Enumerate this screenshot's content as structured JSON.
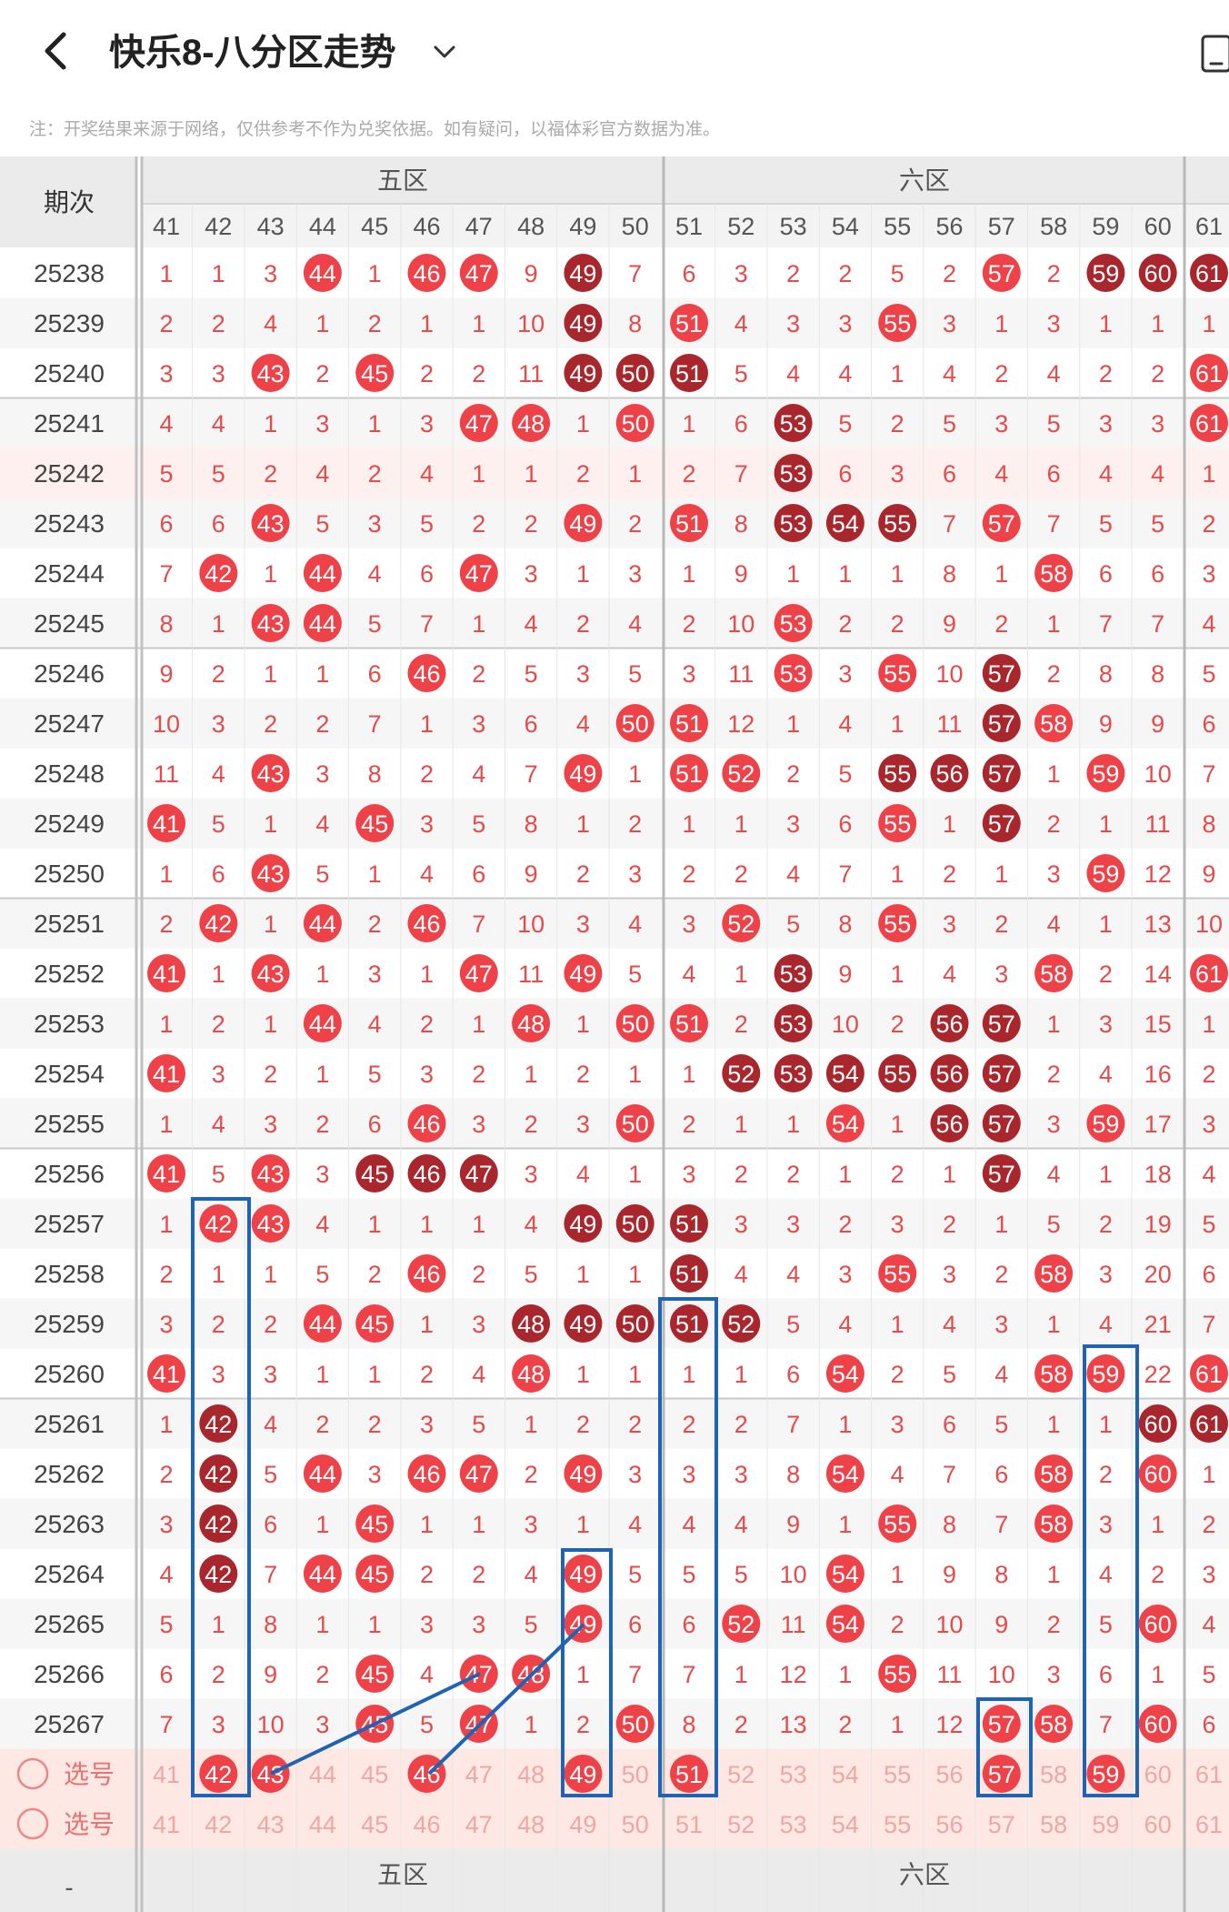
{
  "header": {
    "title": "快乐8-八分区走势",
    "note": "注：开奖结果来源于网络，仅供参考不作为兑奖依据。如有疑问，以福体彩官方数据为准。"
  },
  "table": {
    "period_label": "期次",
    "zones": [
      {
        "label": "五区",
        "numbers": [
          41,
          42,
          43,
          44,
          45,
          46,
          47,
          48,
          49,
          50
        ]
      },
      {
        "label": "六区",
        "numbers": [
          51,
          52,
          53,
          54,
          55,
          56,
          57,
          58,
          59,
          60
        ]
      }
    ],
    "partial_column": 61,
    "select_label": "选号",
    "footer_dash": "-",
    "rows": [
      {
        "period": "25238",
        "cells": [
          1,
          1,
          3,
          44,
          1,
          46,
          47,
          9,
          49,
          7,
          6,
          3,
          2,
          2,
          5,
          2,
          57,
          2,
          59,
          60,
          61
        ],
        "dark": [
          49,
          59,
          60,
          61
        ]
      },
      {
        "period": "25239",
        "cells": [
          2,
          2,
          4,
          1,
          2,
          1,
          1,
          10,
          49,
          8,
          51,
          4,
          3,
          3,
          55,
          3,
          1,
          3,
          1,
          1,
          1
        ],
        "dark": [
          49
        ]
      },
      {
        "period": "25240",
        "cells": [
          3,
          3,
          43,
          2,
          45,
          2,
          2,
          11,
          49,
          50,
          51,
          5,
          4,
          4,
          1,
          4,
          2,
          4,
          2,
          2,
          61
        ],
        "dark": [
          49,
          50,
          51
        ]
      },
      {
        "period": "25241",
        "cells": [
          4,
          4,
          1,
          3,
          1,
          3,
          47,
          48,
          1,
          50,
          1,
          6,
          53,
          5,
          2,
          5,
          3,
          5,
          3,
          3,
          61
        ],
        "dark": [
          53
        ]
      },
      {
        "period": "25242",
        "cells": [
          5,
          5,
          2,
          4,
          2,
          4,
          1,
          1,
          2,
          1,
          2,
          7,
          53,
          6,
          3,
          6,
          4,
          6,
          4,
          4,
          1
        ],
        "dark": [
          53
        ]
      },
      {
        "period": "25243",
        "cells": [
          6,
          6,
          43,
          5,
          3,
          5,
          2,
          2,
          49,
          2,
          51,
          8,
          53,
          54,
          55,
          7,
          57,
          7,
          5,
          5,
          2
        ],
        "dark": [
          53,
          54,
          55
        ]
      },
      {
        "period": "25244",
        "cells": [
          7,
          42,
          1,
          44,
          4,
          6,
          47,
          3,
          1,
          3,
          1,
          9,
          1,
          1,
          1,
          8,
          1,
          58,
          6,
          6,
          3
        ],
        "dark": []
      },
      {
        "period": "25245",
        "cells": [
          8,
          1,
          43,
          44,
          5,
          7,
          1,
          4,
          2,
          4,
          2,
          10,
          53,
          2,
          2,
          9,
          2,
          1,
          7,
          7,
          4
        ],
        "dark": []
      },
      {
        "period": "25246",
        "cells": [
          9,
          2,
          1,
          1,
          6,
          46,
          2,
          5,
          3,
          5,
          3,
          11,
          53,
          3,
          55,
          10,
          57,
          2,
          8,
          8,
          5
        ],
        "dark": [
          57
        ]
      },
      {
        "period": "25247",
        "cells": [
          10,
          3,
          2,
          2,
          7,
          1,
          3,
          6,
          4,
          50,
          51,
          12,
          1,
          4,
          1,
          11,
          57,
          58,
          9,
          9,
          6
        ],
        "dark": [
          57
        ]
      },
      {
        "period": "25248",
        "cells": [
          11,
          4,
          43,
          3,
          8,
          2,
          4,
          7,
          49,
          1,
          51,
          52,
          2,
          5,
          55,
          56,
          57,
          1,
          59,
          10,
          7
        ],
        "dark": [
          55,
          56,
          57
        ]
      },
      {
        "period": "25249",
        "cells": [
          41,
          5,
          1,
          4,
          45,
          3,
          5,
          8,
          1,
          2,
          1,
          1,
          3,
          6,
          55,
          1,
          57,
          2,
          1,
          11,
          8
        ],
        "dark": [
          57
        ]
      },
      {
        "period": "25250",
        "cells": [
          1,
          6,
          43,
          5,
          1,
          4,
          6,
          9,
          2,
          3,
          2,
          2,
          4,
          7,
          1,
          2,
          1,
          3,
          59,
          12,
          9
        ],
        "dark": []
      },
      {
        "period": "25251",
        "cells": [
          2,
          42,
          1,
          44,
          2,
          46,
          7,
          10,
          3,
          4,
          3,
          52,
          5,
          8,
          55,
          3,
          2,
          4,
          1,
          13,
          10
        ],
        "dark": []
      },
      {
        "period": "25252",
        "cells": [
          41,
          1,
          43,
          1,
          3,
          1,
          47,
          11,
          49,
          5,
          4,
          1,
          53,
          9,
          1,
          4,
          3,
          58,
          2,
          14,
          61
        ],
        "dark": [
          53
        ]
      },
      {
        "period": "25253",
        "cells": [
          1,
          2,
          1,
          44,
          4,
          2,
          1,
          48,
          1,
          50,
          51,
          2,
          53,
          10,
          2,
          56,
          57,
          1,
          3,
          15,
          1
        ],
        "dark": [
          53,
          56,
          57
        ]
      },
      {
        "period": "25254",
        "cells": [
          41,
          3,
          2,
          1,
          5,
          3,
          2,
          1,
          2,
          1,
          1,
          52,
          53,
          54,
          55,
          56,
          57,
          2,
          4,
          16,
          2
        ],
        "dark": [
          52,
          53,
          54,
          55,
          56,
          57
        ]
      },
      {
        "period": "25255",
        "cells": [
          1,
          4,
          3,
          2,
          6,
          46,
          3,
          2,
          3,
          50,
          2,
          1,
          1,
          54,
          1,
          56,
          57,
          3,
          59,
          17,
          3
        ],
        "dark": [
          56,
          57
        ]
      },
      {
        "period": "25256",
        "cells": [
          41,
          5,
          43,
          3,
          45,
          46,
          47,
          3,
          4,
          1,
          3,
          2,
          2,
          1,
          2,
          1,
          57,
          4,
          1,
          18,
          4
        ],
        "dark": [
          45,
          46,
          47,
          57
        ]
      },
      {
        "period": "25257",
        "cells": [
          1,
          42,
          43,
          4,
          1,
          1,
          1,
          4,
          49,
          50,
          51,
          3,
          3,
          2,
          3,
          2,
          1,
          5,
          2,
          19,
          5
        ],
        "dark": [
          49,
          50,
          51
        ]
      },
      {
        "period": "25258",
        "cells": [
          2,
          1,
          1,
          5,
          2,
          46,
          2,
          5,
          1,
          1,
          51,
          4,
          4,
          3,
          55,
          3,
          2,
          58,
          3,
          20,
          6
        ],
        "dark": [
          51
        ]
      },
      {
        "period": "25259",
        "cells": [
          3,
          2,
          2,
          44,
          45,
          1,
          3,
          48,
          49,
          50,
          51,
          52,
          5,
          4,
          1,
          4,
          3,
          1,
          4,
          21,
          7
        ],
        "dark": [
          48,
          49,
          50,
          51,
          52
        ]
      },
      {
        "period": "25260",
        "cells": [
          41,
          3,
          3,
          1,
          1,
          2,
          4,
          48,
          1,
          1,
          1,
          1,
          6,
          54,
          2,
          5,
          4,
          58,
          59,
          22,
          61
        ],
        "dark": []
      },
      {
        "period": "25261",
        "cells": [
          1,
          42,
          4,
          2,
          2,
          3,
          5,
          1,
          2,
          2,
          2,
          2,
          7,
          1,
          3,
          6,
          5,
          1,
          1,
          60,
          61
        ],
        "dark": [
          42,
          60,
          61
        ]
      },
      {
        "period": "25262",
        "cells": [
          2,
          42,
          5,
          44,
          3,
          46,
          47,
          2,
          49,
          3,
          3,
          3,
          8,
          54,
          4,
          7,
          6,
          58,
          2,
          60,
          1
        ],
        "dark": [
          42
        ]
      },
      {
        "period": "25263",
        "cells": [
          3,
          42,
          6,
          1,
          45,
          1,
          1,
          3,
          1,
          4,
          4,
          4,
          9,
          1,
          55,
          8,
          7,
          58,
          3,
          1,
          2
        ],
        "dark": [
          42
        ]
      },
      {
        "period": "25264",
        "cells": [
          4,
          42,
          7,
          44,
          45,
          2,
          2,
          4,
          49,
          5,
          5,
          5,
          10,
          54,
          1,
          9,
          8,
          1,
          4,
          2,
          3
        ],
        "dark": [
          42
        ]
      },
      {
        "period": "25265",
        "cells": [
          5,
          1,
          8,
          1,
          1,
          3,
          3,
          5,
          49,
          6,
          6,
          52,
          11,
          54,
          2,
          10,
          9,
          2,
          5,
          60,
          4
        ],
        "dark": []
      },
      {
        "period": "25266",
        "cells": [
          6,
          2,
          9,
          2,
          45,
          4,
          47,
          48,
          1,
          7,
          7,
          1,
          12,
          1,
          55,
          11,
          10,
          3,
          6,
          1,
          5
        ],
        "dark": []
      },
      {
        "period": "25267",
        "cells": [
          7,
          3,
          10,
          3,
          45,
          5,
          47,
          1,
          2,
          50,
          8,
          2,
          13,
          2,
          1,
          12,
          57,
          58,
          7,
          60,
          6
        ],
        "dark": []
      }
    ],
    "selected_numbers": [
      42,
      43,
      46,
      49,
      51,
      57,
      59
    ]
  },
  "colors": {
    "red": "#ef4148",
    "dark_red": "#a8262c",
    "text_red": "#e54b4b",
    "highlight_box": "#1f63b5",
    "select_bg": "#fde8e4"
  }
}
